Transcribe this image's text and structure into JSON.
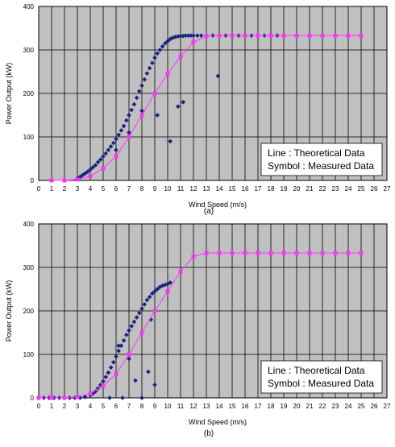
{
  "colors": {
    "plot_bg": "#c0c0c0",
    "grid": "#000000",
    "theory_line": "#ff33ff",
    "theory_marker": "#ff33ff",
    "measured": "#1a237e"
  },
  "chart_data": [
    {
      "type": "scatter",
      "panel_label": "(a)",
      "xlabel": "Wind Speed (m/s)",
      "ylabel": "Power Output (kW)",
      "xlim": [
        0,
        27
      ],
      "ylim": [
        0,
        400
      ],
      "x_ticks": [
        "0",
        "1",
        "2",
        "3",
        "4",
        "5",
        "6",
        "7",
        "8",
        "9",
        "10",
        "11",
        "12",
        "13",
        "14",
        "15",
        "16",
        "17",
        "18",
        "19",
        "20",
        "21",
        "22",
        "23",
        "24",
        "25",
        "26",
        "27"
      ],
      "y_ticks": [
        "0",
        "100",
        "200",
        "300",
        "400"
      ],
      "grid": true,
      "legend_position": "bottom-right",
      "legend": [
        "Line : Theoretical Data",
        "Symbol : Measured Data"
      ],
      "series": [
        {
          "name": "Theoretical Data",
          "x": [
            1,
            2,
            3,
            4,
            5,
            6,
            7,
            8,
            9,
            10,
            11,
            12,
            13,
            14,
            15,
            16,
            17,
            18,
            19,
            20,
            21,
            22,
            23,
            24,
            25
          ],
          "y": [
            0,
            0,
            2,
            10,
            28,
            55,
            100,
            150,
            200,
            245,
            285,
            318,
            332,
            333,
            333,
            333,
            333,
            333,
            333,
            333,
            333,
            333,
            333,
            333,
            333
          ]
        },
        {
          "name": "Measured Data",
          "x": [
            3,
            3.2,
            3.4,
            3.6,
            3.8,
            4,
            4.2,
            4.4,
            4.6,
            4.8,
            5,
            5.2,
            5.4,
            5.6,
            5.8,
            6,
            6.2,
            6.4,
            6.6,
            6.8,
            7,
            7.2,
            7.4,
            7.6,
            7.8,
            8,
            8.2,
            8.4,
            8.6,
            8.8,
            9,
            9.2,
            9.4,
            9.6,
            9.8,
            10,
            10.2,
            10.4,
            10.6,
            10.8,
            11,
            11.2,
            11.4,
            11.6,
            11.8,
            12,
            12.3,
            12.6,
            13,
            13.5,
            14,
            14.5,
            15,
            15.5,
            16,
            16.5,
            17,
            17.5,
            18,
            18.5,
            9.2,
            10.2,
            10.8,
            11.2,
            13.9,
            6,
            7,
            8,
            9
          ],
          "y": [
            5,
            8,
            12,
            16,
            20,
            25,
            30,
            35,
            42,
            48,
            55,
            62,
            70,
            78,
            86,
            95,
            105,
            115,
            125,
            138,
            150,
            162,
            175,
            190,
            205,
            218,
            232,
            246,
            258,
            270,
            282,
            292,
            300,
            308,
            315,
            320,
            325,
            328,
            330,
            331,
            332,
            332,
            333,
            333,
            333,
            333,
            333,
            333,
            333,
            333,
            333,
            333,
            333,
            333,
            333,
            333,
            333,
            333,
            333,
            333,
            150,
            90,
            170,
            180,
            240,
            70,
            110,
            160,
            200
          ]
        }
      ]
    },
    {
      "type": "scatter",
      "panel_label": "(b)",
      "xlabel": "Wind Speed (m/s)",
      "ylabel": "Power Output (kW)",
      "xlim": [
        0,
        27
      ],
      "ylim": [
        0,
        400
      ],
      "x_ticks": [
        "0",
        "1",
        "2",
        "3",
        "4",
        "5",
        "6",
        "7",
        "8",
        "9",
        "10",
        "11",
        "12",
        "13",
        "14",
        "15",
        "16",
        "17",
        "18",
        "19",
        "20",
        "21",
        "22",
        "23",
        "24",
        "25",
        "26",
        "27"
      ],
      "y_ticks": [
        "0",
        "100",
        "200",
        "300",
        "400"
      ],
      "grid": true,
      "legend_position": "bottom-right",
      "legend": [
        "Line : Theoretical Data",
        "Symbol : Measured Data"
      ],
      "series": [
        {
          "name": "Theoretical Data",
          "x": [
            0,
            1,
            2,
            3,
            4,
            5,
            6,
            7,
            8,
            9,
            10,
            11,
            12,
            13,
            14,
            15,
            16,
            17,
            18,
            19,
            20,
            21,
            22,
            23,
            24,
            25
          ],
          "y": [
            0,
            0,
            0,
            2,
            10,
            28,
            55,
            100,
            150,
            200,
            245,
            290,
            325,
            333,
            333,
            333,
            333,
            333,
            333,
            333,
            333,
            333,
            333,
            333,
            333,
            333
          ]
        },
        {
          "name": "Measured Data",
          "x": [
            0,
            0.4,
            0.8,
            1.2,
            1.6,
            2,
            2.4,
            2.8,
            3.2,
            3.6,
            4,
            4.2,
            4.4,
            4.6,
            4.8,
            5,
            5.2,
            5.4,
            5.6,
            5.8,
            6,
            6.2,
            6.4,
            6.6,
            6.8,
            7,
            7.2,
            7.4,
            7.6,
            7.8,
            8,
            8.2,
            8.4,
            8.6,
            8.8,
            9,
            9.2,
            9.4,
            9.6,
            9.8,
            10,
            10.2,
            5.5,
            6.5,
            7.5,
            8.5,
            9,
            8,
            7,
            6.2,
            8.7
          ],
          "y": [
            0,
            0,
            0,
            0,
            0,
            0,
            0,
            0,
            0,
            2,
            6,
            10,
            15,
            22,
            30,
            38,
            48,
            58,
            70,
            82,
            95,
            108,
            120,
            132,
            145,
            155,
            165,
            175,
            185,
            195,
            205,
            215,
            225,
            232,
            240,
            245,
            250,
            255,
            258,
            260,
            262,
            265,
            0,
            0,
            40,
            60,
            30,
            0,
            90,
            120,
            180
          ]
        }
      ]
    }
  ]
}
